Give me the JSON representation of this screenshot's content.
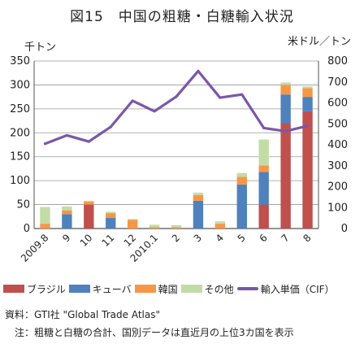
{
  "chart_data": {
    "type": "bar",
    "title": "図15　中国の粗糖・白糖輸入状況",
    "left_unit": "千トン",
    "right_unit": "米ドル／トン",
    "categories": [
      "2009.8",
      "9",
      "10",
      "11",
      "12",
      "2010.1",
      "2",
      "3",
      "4",
      "5",
      "6",
      "7",
      "8"
    ],
    "y_left_ticks": [
      0,
      50,
      100,
      150,
      200,
      250,
      300,
      350
    ],
    "y_right_ticks": [
      0,
      100,
      200,
      300,
      400,
      500,
      600,
      700,
      800
    ],
    "ylim_left": [
      0,
      350
    ],
    "ylim_right": [
      0,
      800
    ],
    "stacked_series": [
      {
        "name": "ブラジル",
        "color": "#c0504d",
        "values": [
          0,
          0,
          50,
          0,
          0,
          0,
          0,
          0,
          0,
          0,
          50,
          220,
          245
        ]
      },
      {
        "name": "キューバ",
        "color": "#4f81bd",
        "values": [
          0,
          30,
          0,
          22,
          0,
          0,
          0,
          58,
          0,
          92,
          68,
          60,
          30
        ]
      },
      {
        "name": "韓国",
        "color": "#f79646",
        "values": [
          10,
          8,
          6,
          10,
          18,
          3,
          3,
          12,
          10,
          16,
          14,
          20,
          18
        ]
      },
      {
        "name": "その他",
        "color": "#c3dca6",
        "values": [
          35,
          8,
          2,
          3,
          2,
          5,
          4,
          5,
          5,
          8,
          54,
          5,
          4
        ]
      }
    ],
    "line_series": {
      "name": "輸入単価（CIF）",
      "color": "#7a57a8",
      "values": [
        405,
        445,
        415,
        485,
        610,
        560,
        630,
        752,
        625,
        640,
        480,
        465,
        490
      ]
    },
    "legend_position": "bottom"
  },
  "source": "資料：GTI社 \"Global Trade Atlas\"",
  "note": "注：粗糖と白糖の合計、国別データは直近月の上位3カ国を表示"
}
